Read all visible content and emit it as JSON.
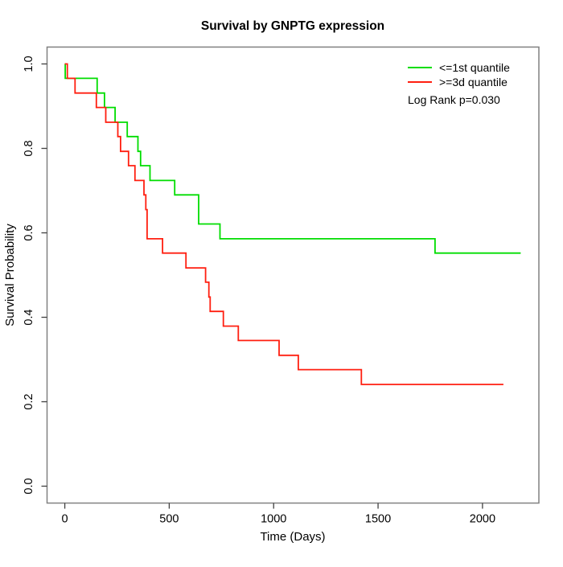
{
  "title": "Survival by GNPTG expression",
  "colors": {
    "green_line": "#00dd00",
    "red_line": "#ff1f10",
    "box": "#808080",
    "tick": "#404040",
    "text": "#000000",
    "background": "#ffffff"
  },
  "chart_data": {
    "type": "line",
    "subtype": "kaplan-meier-step",
    "title": "Survival by GNPTG expression",
    "xlabel": "Time (Days)",
    "ylabel": "Survival Probability",
    "xlim": [
      -85,
      2270
    ],
    "ylim": [
      -0.04,
      1.04
    ],
    "grid": false,
    "legend_position": "top-right",
    "annotation": "Log Rank p=0.030",
    "xticks": {
      "values": [
        0,
        500,
        1000,
        1500,
        2000
      ],
      "labels": [
        "0",
        "500",
        "1000",
        "1500",
        "2000"
      ]
    },
    "yticks": {
      "values": [
        0.0,
        0.2,
        0.4,
        0.6,
        0.8,
        1.0
      ],
      "labels": [
        "0.0",
        "0.2",
        "0.4",
        "0.6",
        "0.8",
        "1.0"
      ]
    },
    "series": [
      {
        "name": "<=1st quantile",
        "color": "#00dd00",
        "step": true,
        "points": [
          [
            0,
            1.0
          ],
          [
            2,
            0.966
          ],
          [
            155,
            0.931
          ],
          [
            190,
            0.897
          ],
          [
            241,
            0.862
          ],
          [
            299,
            0.828
          ],
          [
            350,
            0.793
          ],
          [
            363,
            0.759
          ],
          [
            408,
            0.724
          ],
          [
            526,
            0.69
          ],
          [
            641,
            0.621
          ],
          [
            743,
            0.586
          ],
          [
            1773,
            0.552
          ],
          [
            2183,
            0.552
          ]
        ]
      },
      {
        "name": ">=3d quantile",
        "color": "#ff1f10",
        "step": true,
        "points": [
          [
            0,
            1.0
          ],
          [
            12,
            0.966
          ],
          [
            49,
            0.931
          ],
          [
            151,
            0.897
          ],
          [
            196,
            0.862
          ],
          [
            254,
            0.828
          ],
          [
            267,
            0.793
          ],
          [
            305,
            0.759
          ],
          [
            336,
            0.724
          ],
          [
            379,
            0.69
          ],
          [
            388,
            0.655
          ],
          [
            394,
            0.586
          ],
          [
            468,
            0.552
          ],
          [
            580,
            0.517
          ],
          [
            674,
            0.483
          ],
          [
            690,
            0.448
          ],
          [
            696,
            0.414
          ],
          [
            759,
            0.379
          ],
          [
            831,
            0.345
          ],
          [
            1026,
            0.31
          ],
          [
            1118,
            0.276
          ],
          [
            1420,
            0.241
          ],
          [
            2100,
            0.241
          ]
        ]
      }
    ]
  }
}
